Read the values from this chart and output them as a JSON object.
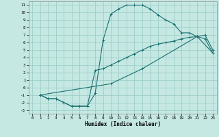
{
  "xlabel": "Humidex (Indice chaleur)",
  "bg_color": "#c5e8e3",
  "grid_color": "#9ecec8",
  "line_color": "#1a7070",
  "xlim": [
    -0.5,
    23.5
  ],
  "ylim": [
    -3.5,
    11.5
  ],
  "xticks": [
    0,
    1,
    2,
    3,
    4,
    5,
    6,
    7,
    8,
    9,
    10,
    11,
    12,
    13,
    14,
    15,
    16,
    17,
    18,
    19,
    20,
    21,
    22,
    23
  ],
  "yticks": [
    -3,
    -2,
    -1,
    0,
    1,
    2,
    3,
    4,
    5,
    6,
    7,
    8,
    9,
    10,
    11
  ],
  "curve1_x": [
    1,
    2,
    3,
    4,
    5,
    6,
    7,
    8,
    9,
    10,
    11,
    12,
    13,
    14,
    15,
    16,
    17,
    18,
    19,
    20,
    21,
    22,
    23
  ],
  "curve1_y": [
    -1,
    -1.5,
    -1.5,
    -2,
    -2.5,
    -2.5,
    -2.5,
    -0.8,
    6.3,
    9.8,
    10.5,
    11.0,
    11.0,
    11.0,
    10.5,
    9.7,
    9.0,
    8.5,
    7.3,
    7.3,
    6.8,
    6.5,
    4.6
  ],
  "curve2_x": [
    1,
    2,
    3,
    4,
    5,
    6,
    7,
    8,
    9,
    10,
    11,
    12,
    13,
    14,
    15,
    16,
    17,
    18,
    19,
    20,
    21,
    22,
    23
  ],
  "curve2_y": [
    -1,
    -1.5,
    -1.5,
    -2,
    -2.5,
    -2.5,
    -2.5,
    2.3,
    2.5,
    3.0,
    3.5,
    4.0,
    4.5,
    5.0,
    5.5,
    5.8,
    6.0,
    6.2,
    6.5,
    6.7,
    6.8,
    7.0,
    5.0
  ],
  "curve3_x": [
    1,
    10,
    14,
    21,
    23
  ],
  "curve3_y": [
    -1,
    0.5,
    2.5,
    6.8,
    4.6
  ]
}
